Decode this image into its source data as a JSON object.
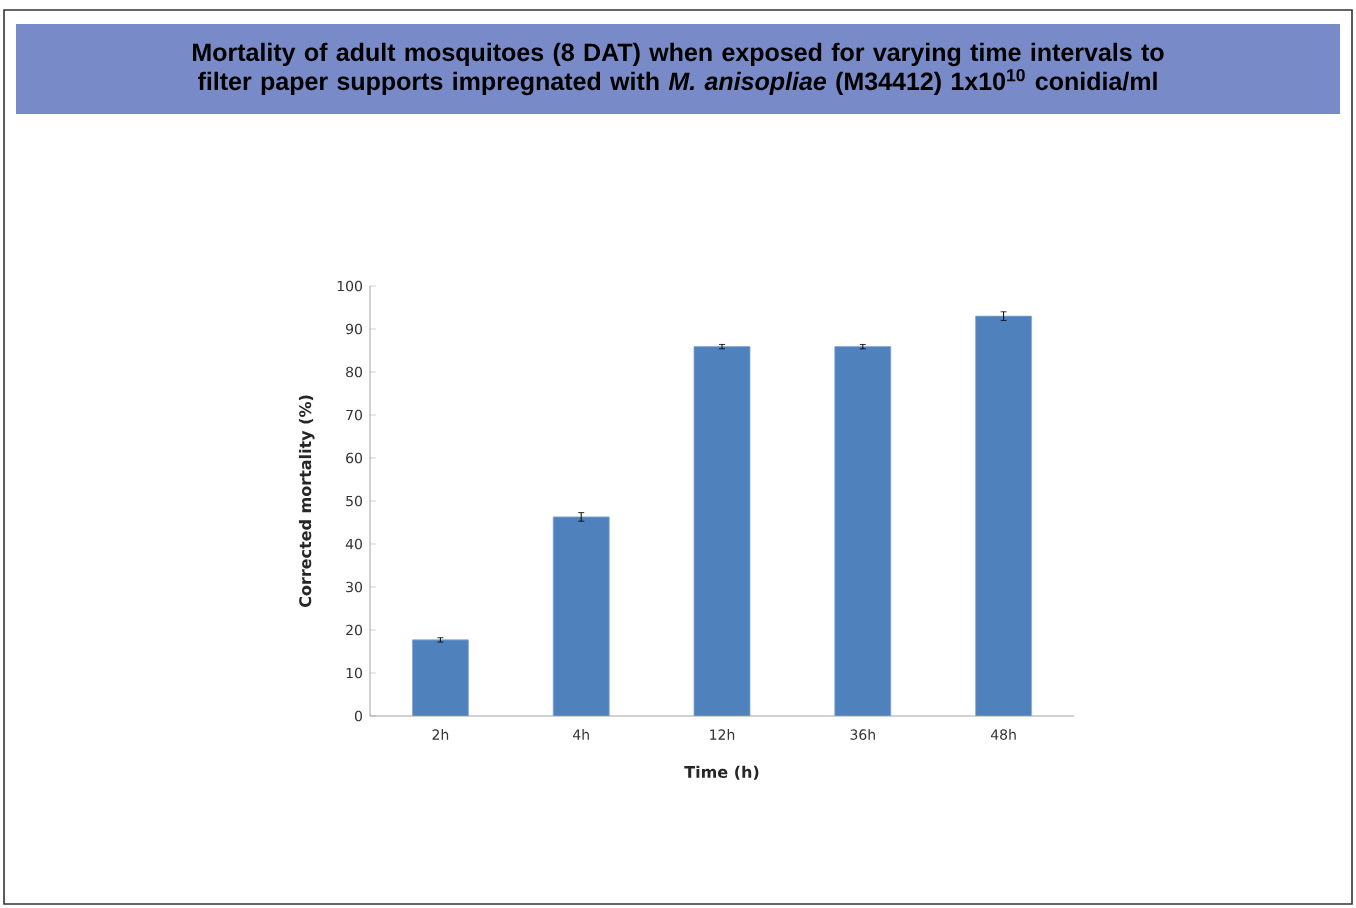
{
  "chart_data": {
    "type": "bar",
    "title": "Mortality of adult mosquitoes (8 DAT) when exposed for varying time intervals to filter paper supports impregnated with *M. anisopliae* (M34412) 1x10$^{10}$ conidia/ml",
    "xlabel": "Time (h)",
    "ylabel": "Corrected mortality (%)",
    "categories": [
      "2h",
      "4h",
      "12h",
      "36h",
      "48h"
    ],
    "values": [
      17.7,
      46.3,
      85.9,
      85.9,
      93
    ],
    "errors": [
      0.5,
      1,
      0.5,
      0.5,
      1
    ],
    "color": "#4f81bd",
    "ylim": [
      0,
      100
    ],
    "yticks": [
      0,
      10,
      20,
      30,
      40,
      50,
      60,
      70,
      80,
      90,
      100
    ],
    "grid": false
  }
}
